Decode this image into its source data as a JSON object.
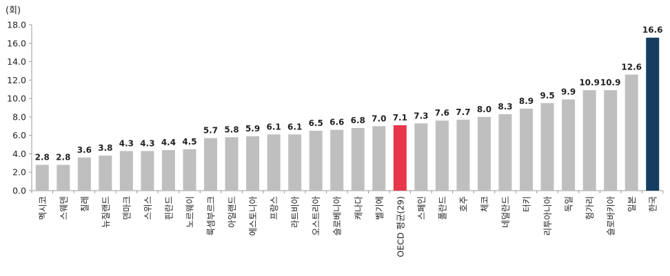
{
  "chart_data": {
    "type": "bar",
    "unit_label": "(회)",
    "categories": [
      "멕시코",
      "스웨덴",
      "칠레",
      "뉴질랜드",
      "덴마크",
      "스위스",
      "핀란드",
      "노르웨이",
      "룩셈부르크",
      "아일랜드",
      "에스토니아",
      "프랑스",
      "라트비아",
      "오스트리아",
      "슬로베니아",
      "캐나다",
      "벨기에",
      "OECD 평균(29)",
      "스페인",
      "폴란드",
      "호주",
      "체코",
      "네덜란드",
      "터키",
      "리투아니아",
      "독일",
      "헝가리",
      "슬로바키아",
      "일본",
      "한국"
    ],
    "values": [
      2.8,
      2.8,
      3.6,
      3.8,
      4.3,
      4.3,
      4.4,
      4.5,
      5.7,
      5.8,
      5.9,
      6.1,
      6.1,
      6.5,
      6.6,
      6.8,
      7.0,
      7.1,
      7.3,
      7.6,
      7.7,
      8.0,
      8.3,
      8.9,
      9.5,
      9.9,
      10.9,
      10.9,
      12.6,
      16.6
    ],
    "value_labels": [
      "2.8",
      "2.8",
      "3.6",
      "3.8",
      "4.3",
      "4.3",
      "4.4",
      "4.5",
      "5.7",
      "5.8",
      "5.9",
      "6.1",
      "6.1",
      "6.5",
      "6.6",
      "6.8",
      "7.0",
      "7.1",
      "7.3",
      "7.6",
      "7.7",
      "8.0",
      "8.3",
      "8.9",
      "9.5",
      "9.9",
      "10.9",
      "10.9",
      "12.6",
      "16.6"
    ],
    "ylim": [
      0,
      18
    ],
    "yticks": [
      "0.0",
      "2.0",
      "4.0",
      "6.0",
      "8.0",
      "10.0",
      "12.0",
      "14.0",
      "16.0",
      "18.0"
    ],
    "ytick_values": [
      0,
      2,
      4,
      6,
      8,
      10,
      12,
      14,
      16,
      18
    ],
    "colors": {
      "default": "#bfbfbf",
      "oecd": "#e8374a",
      "korea": "#163c61"
    },
    "highlight": {
      "OECD 평균(29)": "oecd",
      "한국": "korea"
    },
    "grid": false,
    "legend": "none"
  }
}
